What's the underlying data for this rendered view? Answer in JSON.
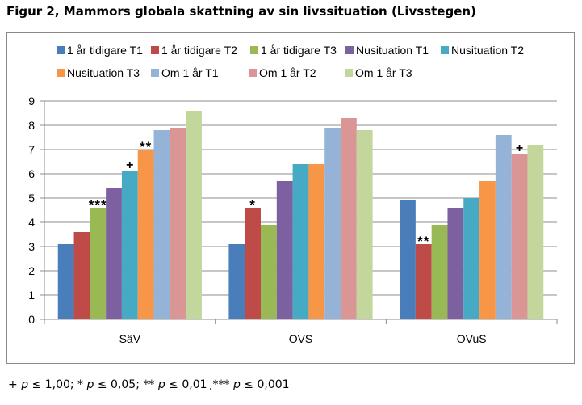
{
  "figure_title": "Figur  2, Mammors globala skattning av sin livssituation (Livsstegen)",
  "footnote": {
    "plus": "+",
    "p1": "p",
    "t1": " ≤ 1,00; * ",
    "p2": "p",
    "t2": " ≤ 0,05; ** ",
    "p3": "p",
    "t3": " ≤ 0,01¸*** ",
    "p4": "p",
    "t4": " ≤ 0,001"
  },
  "chart_data": {
    "type": "bar",
    "title": "",
    "xlabel": "",
    "ylabel": "",
    "ylim": [
      0,
      9
    ],
    "yticks": [
      "0",
      "1",
      "2",
      "3",
      "4",
      "5",
      "6",
      "7",
      "8",
      "9"
    ],
    "grid": true,
    "legend_position": "top",
    "categories": [
      "SäV",
      "OVS",
      "OVuS"
    ],
    "series": [
      {
        "name": "1 år tidigare T1",
        "color": "#4a7ebb",
        "values": [
          3.1,
          3.1,
          4.9
        ],
        "annotations": [
          "",
          "",
          ""
        ]
      },
      {
        "name": "1 år tidigare T2",
        "color": "#be4b48",
        "values": [
          3.6,
          4.6,
          3.1
        ],
        "annotations": [
          "",
          "*",
          "**"
        ]
      },
      {
        "name": "1 år tidigare T3",
        "color": "#98b954",
        "values": [
          4.6,
          3.9,
          3.9
        ],
        "annotations": [
          "***",
          "",
          ""
        ]
      },
      {
        "name": "Nusituation T1",
        "color": "#7d60a0",
        "values": [
          5.4,
          5.7,
          4.6
        ],
        "annotations": [
          "",
          "",
          ""
        ]
      },
      {
        "name": "Nusituation T2",
        "color": "#46aac5",
        "values": [
          6.1,
          6.4,
          5.0
        ],
        "annotations": [
          "+",
          "",
          ""
        ]
      },
      {
        "name": "Nusituation T3",
        "color": "#f79646",
        "values": [
          7.0,
          6.4,
          5.7
        ],
        "annotations": [
          "**",
          "",
          ""
        ]
      },
      {
        "name": "Om 1 år T1",
        "color": "#95b3d7",
        "values": [
          7.8,
          7.9,
          7.6
        ],
        "annotations": [
          "",
          "",
          ""
        ]
      },
      {
        "name": "Om 1 år T2",
        "color": "#d99694",
        "values": [
          7.9,
          8.3,
          6.8
        ],
        "annotations": [
          "",
          "",
          "+"
        ]
      },
      {
        "name": "Om 1 år T3",
        "color": "#c3d69b",
        "values": [
          8.6,
          7.8,
          7.2
        ],
        "annotations": [
          "",
          "",
          ""
        ]
      }
    ]
  }
}
